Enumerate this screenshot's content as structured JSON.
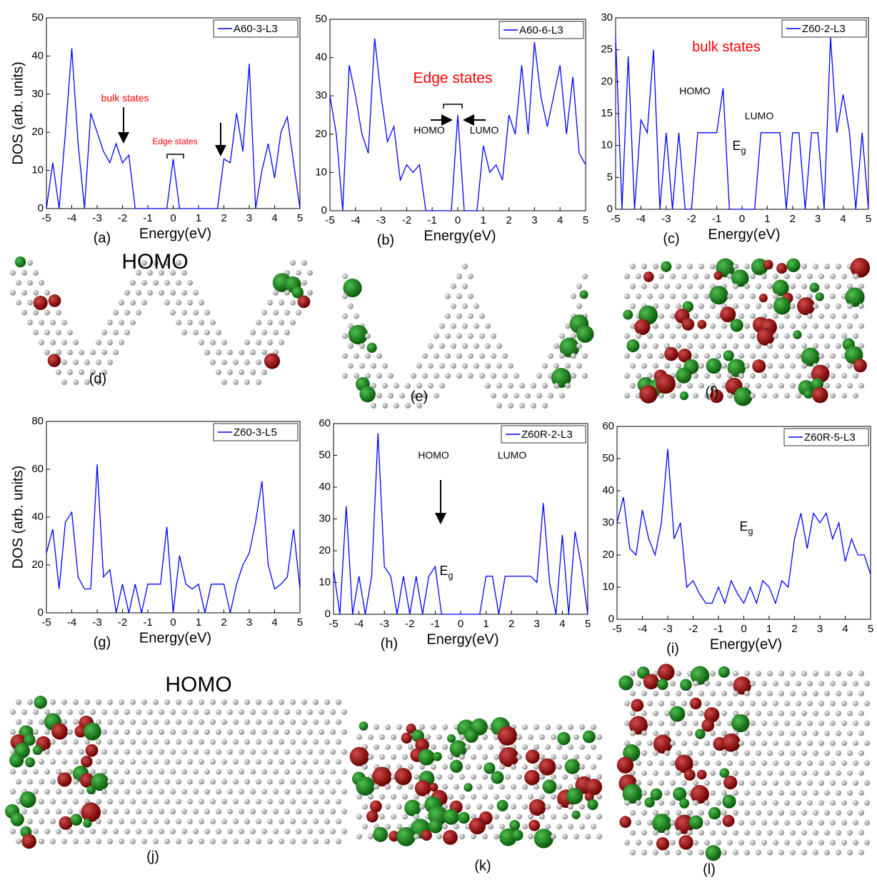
{
  "chart_data": [
    {
      "type": "line",
      "panel_label": "(a)",
      "xlabel": "Energy(eV)",
      "ylabel": "DOS (arb. units)",
      "xlim": [
        -5,
        5
      ],
      "xticks": [
        -5,
        -4,
        -3,
        -2,
        -1,
        0,
        1,
        2,
        3,
        4,
        5
      ],
      "ylim": [
        0,
        50
      ],
      "yticks": [
        0,
        10,
        20,
        30,
        40,
        50
      ],
      "legend": "upper right",
      "x": [
        -5,
        -4.75,
        -4.5,
        -4.25,
        -4,
        -3.75,
        -3.5,
        -3.25,
        -3,
        -2.75,
        -2.5,
        -2.25,
        -2,
        -1.75,
        -1.5,
        -1.25,
        -1,
        -0.75,
        -0.5,
        -0.25,
        0,
        0.25,
        0.5,
        0.75,
        1,
        1.25,
        1.5,
        1.75,
        2,
        2.25,
        2.5,
        2.75,
        3,
        3.25,
        3.5,
        3.75,
        4,
        4.25,
        4.5,
        4.75,
        5
      ],
      "series": [
        {
          "name": "A60-3-L3",
          "color": "#0000ff",
          "values": [
            0,
            12,
            0,
            20,
            42,
            17,
            0,
            25,
            20,
            15,
            12,
            17,
            12,
            14,
            0,
            0,
            0,
            0,
            0,
            0,
            13,
            0,
            0,
            0,
            0,
            0,
            0,
            0,
            13,
            12,
            25,
            15,
            38,
            0,
            10,
            17,
            8,
            20,
            24,
            12,
            0
          ]
        }
      ],
      "annotations": [
        {
          "text": "bulk states",
          "color": "#ff0000"
        },
        {
          "text": "Edge states",
          "color": "#ff0000"
        }
      ]
    },
    {
      "type": "line",
      "panel_label": "(b)",
      "xlabel": "Energy(eV)",
      "xlim": [
        -5,
        5
      ],
      "xticks": [
        -5,
        -4,
        -3,
        -2,
        -1,
        0,
        1,
        2,
        3,
        4,
        5
      ],
      "ylim": [
        0,
        50
      ],
      "yticks": [
        0,
        10,
        20,
        30,
        40,
        50
      ],
      "legend": "upper right",
      "x": [
        -5,
        -4.75,
        -4.5,
        -4.25,
        -4,
        -3.75,
        -3.5,
        -3.25,
        -3,
        -2.75,
        -2.5,
        -2.25,
        -2,
        -1.75,
        -1.5,
        -1.25,
        -1,
        -0.75,
        -0.5,
        -0.25,
        0,
        0.25,
        0.5,
        0.75,
        1,
        1.25,
        1.5,
        1.75,
        2,
        2.25,
        2.5,
        2.75,
        3,
        3.25,
        3.5,
        3.75,
        4,
        4.25,
        4.5,
        4.75,
        5
      ],
      "series": [
        {
          "name": "A60-6-L3",
          "color": "#0000ff",
          "values": [
            30,
            20,
            0,
            38,
            30,
            20,
            15,
            45,
            30,
            18,
            22,
            8,
            12,
            10,
            12,
            0,
            0,
            0,
            0,
            0,
            25,
            0,
            0,
            0,
            17,
            10,
            12,
            8,
            25,
            20,
            38,
            20,
            44,
            30,
            22,
            30,
            38,
            20,
            35,
            15,
            12
          ]
        }
      ],
      "annotations": [
        {
          "text": "Edge states",
          "color": "#ff0000"
        },
        {
          "text": "HOMO",
          "color": "#000000"
        },
        {
          "text": "LUMO",
          "color": "#000000"
        }
      ]
    },
    {
      "type": "line",
      "panel_label": "(c)",
      "xlabel": "Energy(eV)",
      "xlim": [
        -5,
        5
      ],
      "xticks": [
        -5,
        -4,
        -3,
        -2,
        -1,
        0,
        1,
        2,
        3,
        4,
        5
      ],
      "ylim": [
        0,
        30
      ],
      "yticks": [
        0,
        5,
        10,
        15,
        20,
        25,
        30
      ],
      "legend": "upper right",
      "x": [
        -5,
        -4.75,
        -4.5,
        -4.25,
        -4,
        -3.75,
        -3.5,
        -3.25,
        -3,
        -2.75,
        -2.5,
        -2.25,
        -2,
        -1.75,
        -1.5,
        -1.25,
        -1,
        -0.75,
        -0.5,
        -0.25,
        0,
        0.25,
        0.5,
        0.75,
        1,
        1.25,
        1.5,
        1.75,
        2,
        2.25,
        2.5,
        2.75,
        3,
        3.25,
        3.5,
        3.75,
        4,
        4.25,
        4.5,
        4.75,
        5
      ],
      "series": [
        {
          "name": "Z60-2-L3",
          "color": "#0000ff",
          "values": [
            27,
            0,
            24,
            0,
            14,
            12,
            25,
            0,
            12,
            0,
            12,
            0,
            0,
            12,
            12,
            12,
            12,
            19,
            0,
            0,
            0,
            0,
            0,
            12,
            12,
            12,
            12,
            0,
            12,
            12,
            0,
            12,
            12,
            0,
            27,
            12,
            18,
            12,
            0,
            12,
            0
          ]
        }
      ],
      "annotations": [
        {
          "text": "bulk states",
          "color": "#ff0000"
        },
        {
          "text": "HOMO",
          "color": "#000000"
        },
        {
          "text": "LUMO",
          "color": "#000000"
        },
        {
          "text": "E",
          "subscript": "g",
          "color": "#000000"
        }
      ]
    },
    {
      "type": "line",
      "panel_label": "(g)",
      "xlabel": "Energy(eV)",
      "ylabel": "DOS (arb. units)",
      "xlim": [
        -5,
        5
      ],
      "xticks": [
        -5,
        -4,
        -3,
        -2,
        -1,
        0,
        1,
        2,
        3,
        4,
        5
      ],
      "ylim": [
        0,
        80
      ],
      "yticks": [
        0,
        20,
        40,
        60,
        80
      ],
      "legend": "upper right",
      "x": [
        -5,
        -4.75,
        -4.5,
        -4.25,
        -4,
        -3.75,
        -3.5,
        -3.25,
        -3,
        -2.75,
        -2.5,
        -2.25,
        -2,
        -1.75,
        -1.5,
        -1.25,
        -1,
        -0.75,
        -0.5,
        -0.25,
        0,
        0.25,
        0.5,
        0.75,
        1,
        1.25,
        1.5,
        1.75,
        2,
        2.25,
        2.5,
        2.75,
        3,
        3.25,
        3.5,
        3.75,
        4,
        4.25,
        4.5,
        4.75,
        5
      ],
      "series": [
        {
          "name": "Z60-3-L5",
          "color": "#0000ff",
          "values": [
            25,
            35,
            10,
            38,
            42,
            15,
            10,
            10,
            62,
            15,
            18,
            0,
            12,
            0,
            12,
            0,
            12,
            12,
            12,
            36,
            0,
            24,
            12,
            10,
            12,
            0,
            12,
            12,
            12,
            0,
            12,
            20,
            25,
            38,
            55,
            20,
            10,
            12,
            15,
            35,
            10
          ]
        }
      ],
      "annotations": []
    },
    {
      "type": "line",
      "panel_label": "(h)",
      "xlabel": "Energy(eV)",
      "xlim": [
        -5,
        5
      ],
      "xticks": [
        -5,
        -4,
        -3,
        -2,
        -1,
        0,
        1,
        2,
        3,
        4,
        5
      ],
      "ylim": [
        0,
        60
      ],
      "yticks": [
        0,
        10,
        20,
        30,
        40,
        50,
        60
      ],
      "legend": "upper right",
      "x": [
        -5,
        -4.75,
        -4.5,
        -4.25,
        -4,
        -3.75,
        -3.5,
        -3.25,
        -3,
        -2.75,
        -2.5,
        -2.25,
        -2,
        -1.75,
        -1.5,
        -1.25,
        -1,
        -0.75,
        -0.5,
        -0.25,
        0,
        0.25,
        0.5,
        0.75,
        1,
        1.25,
        1.5,
        1.75,
        2,
        2.25,
        2.5,
        2.75,
        3,
        3.25,
        3.5,
        3.75,
        4,
        4.25,
        4.5,
        4.75,
        5
      ],
      "series": [
        {
          "name": "Z60R-2-L3",
          "color": "#0000ff",
          "values": [
            14,
            0,
            34,
            0,
            12,
            0,
            12,
            57,
            15,
            12,
            0,
            12,
            0,
            12,
            0,
            12,
            15,
            0,
            0,
            0,
            0,
            0,
            0,
            0,
            12,
            12,
            0,
            12,
            12,
            12,
            12,
            12,
            10,
            35,
            10,
            0,
            25,
            0,
            26,
            15,
            0
          ]
        }
      ],
      "annotations": [
        {
          "text": "HOMO",
          "color": "#000000"
        },
        {
          "text": "LUMO",
          "color": "#000000"
        },
        {
          "text": "E",
          "subscript": "g",
          "color": "#000000"
        }
      ]
    },
    {
      "type": "line",
      "panel_label": "(i)",
      "xlabel": "Energy(eV)",
      "xlim": [
        -5,
        5
      ],
      "xticks": [
        -5,
        -4,
        -3,
        -2,
        -1,
        0,
        1,
        2,
        3,
        4,
        5
      ],
      "ylim": [
        0,
        60
      ],
      "yticks": [
        0,
        10,
        20,
        30,
        40,
        50,
        60
      ],
      "legend": "upper right",
      "x": [
        -5,
        -4.75,
        -4.5,
        -4.25,
        -4,
        -3.75,
        -3.5,
        -3.25,
        -3,
        -2.75,
        -2.5,
        -2.25,
        -2,
        -1.75,
        -1.5,
        -1.25,
        -1,
        -0.75,
        -0.5,
        -0.25,
        0,
        0.25,
        0.5,
        0.75,
        1,
        1.25,
        1.5,
        1.75,
        2,
        2.25,
        2.5,
        2.75,
        3,
        3.25,
        3.5,
        3.75,
        4,
        4.25,
        4.5,
        4.75,
        5
      ],
      "series": [
        {
          "name": "Z60R-5-L3",
          "color": "#0000ff",
          "values": [
            30,
            38,
            22,
            20,
            34,
            25,
            20,
            30,
            53,
            25,
            30,
            10,
            12,
            8,
            5,
            5,
            10,
            5,
            12,
            8,
            5,
            10,
            5,
            12,
            10,
            5,
            12,
            10,
            25,
            33,
            22,
            33,
            30,
            33,
            25,
            30,
            18,
            25,
            20,
            20,
            14
          ]
        }
      ],
      "annotations": [
        {
          "text": "E",
          "subscript": "g",
          "color": "#000000"
        }
      ]
    }
  ],
  "images": [
    {
      "panel_label": "(d)",
      "title": "HOMO"
    },
    {
      "panel_label": "(e)"
    },
    {
      "panel_label": "(f)"
    },
    {
      "panel_label": "(j)",
      "title": "HOMO"
    },
    {
      "panel_label": "(k)"
    },
    {
      "panel_label": "(l)"
    }
  ]
}
